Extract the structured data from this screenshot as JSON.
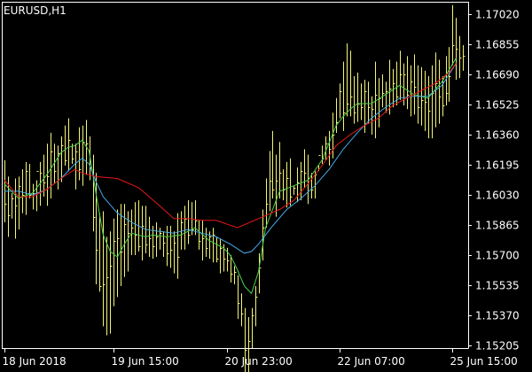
{
  "window": {
    "title": "EURUSD,H1"
  },
  "colors": {
    "background": "#000000",
    "axis": "#ffffff",
    "bars": "#f4f476",
    "ma_fast": "#4bd24b",
    "ma_medium": "#45a9e8",
    "ma_slow": "#e81818"
  },
  "chart_data": {
    "type": "line",
    "title": "EURUSD,H1",
    "symbol": "EURUSD",
    "timeframe": "H1",
    "xlabel": "",
    "ylabel": "",
    "grid": false,
    "legend": "none",
    "ylim": [
      1.1508,
      1.1711
    ],
    "y_ticks": [
      "1.17020",
      "1.16855",
      "1.16690",
      "1.16525",
      "1.16360",
      "1.16195",
      "1.16030",
      "1.15865",
      "1.15700",
      "1.15535",
      "1.15370",
      "1.15205"
    ],
    "x_ticks": [
      "18 Jun 2018",
      "19 Jun 15:00",
      "20 Jun 23:00",
      "22 Jun 07:00",
      "25 Jun 15:00"
    ],
    "x_tick_bar_index": [
      0,
      31,
      63,
      95,
      127
    ],
    "bars": {
      "style": "hlc",
      "high": [
        1.1622,
        1.1613,
        1.1604,
        1.1612,
        1.1613,
        1.1617,
        1.1621,
        1.162,
        1.1609,
        1.1611,
        1.1621,
        1.1625,
        1.1631,
        1.1637,
        1.1631,
        1.163,
        1.1635,
        1.1641,
        1.1645,
        1.1631,
        1.1631,
        1.164,
        1.1641,
        1.1644,
        1.1635,
        1.1625,
        1.1615,
        1.1593,
        1.1594,
        1.158,
        1.1583,
        1.159,
        1.1595,
        1.1598,
        1.1598,
        1.1594,
        1.1595,
        1.1599,
        1.16,
        1.1597,
        1.1597,
        1.1591,
        1.1586,
        1.1588,
        1.1585,
        1.1583,
        1.1586,
        1.1586,
        1.1583,
        1.1593,
        1.1594,
        1.1597,
        1.16,
        1.1599,
        1.16,
        1.1589,
        1.1589,
        1.1585,
        1.1583,
        1.1585,
        1.158,
        1.1579,
        1.1576,
        1.1574,
        1.157,
        1.1564,
        1.1559,
        1.1549,
        1.1541,
        1.1536,
        1.1541,
        1.1553,
        1.1571,
        1.1595,
        1.1612,
        1.1627,
        1.1638,
        1.1625,
        1.1632,
        1.1617,
        1.1621,
        1.1623,
        1.1608,
        1.1618,
        1.1621,
        1.1628,
        1.1625,
        1.1615,
        1.1616,
        1.1619,
        1.163,
        1.1635,
        1.1638,
        1.1648,
        1.1656,
        1.1664,
        1.1676,
        1.1686,
        1.1682,
        1.1668,
        1.167,
        1.1664,
        1.1666,
        1.1665,
        1.1657,
        1.1676,
        1.1667,
        1.1669,
        1.1665,
        1.1677,
        1.1672,
        1.1676,
        1.1682,
        1.1675,
        1.1679,
        1.1674,
        1.168,
        1.1674,
        1.1673,
        1.1671,
        1.1668,
        1.1674,
        1.1681,
        1.1677,
        1.1668,
        1.1679,
        1.1684,
        1.1707,
        1.17,
        1.169,
        1.1685
      ],
      "low": [
        1.1588,
        1.158,
        1.159,
        1.1579,
        1.1584,
        1.1593,
        1.1592,
        1.1601,
        1.1595,
        1.1594,
        1.1597,
        1.1602,
        1.1597,
        1.1601,
        1.1609,
        1.1606,
        1.161,
        1.1619,
        1.1616,
        1.162,
        1.1606,
        1.1611,
        1.1608,
        1.1614,
        1.1611,
        1.1583,
        1.1554,
        1.155,
        1.1531,
        1.1526,
        1.1527,
        1.1542,
        1.1547,
        1.1553,
        1.1558,
        1.1561,
        1.157,
        1.157,
        1.1572,
        1.1567,
        1.1571,
        1.1569,
        1.1568,
        1.1569,
        1.1573,
        1.1569,
        1.1564,
        1.1563,
        1.156,
        1.1557,
        1.1573,
        1.1573,
        1.1576,
        1.1581,
        1.1581,
        1.1573,
        1.1567,
        1.1569,
        1.1568,
        1.1566,
        1.1566,
        1.156,
        1.1561,
        1.1561,
        1.1555,
        1.1554,
        1.1535,
        1.1531,
        1.1502,
        1.1505,
        1.1519,
        1.1531,
        1.1549,
        1.1567,
        1.1585,
        1.1594,
        1.1601,
        1.1591,
        1.1601,
        1.16,
        1.1596,
        1.1597,
        1.1603,
        1.1599,
        1.16,
        1.1607,
        1.1598,
        1.1601,
        1.1601,
        1.1616,
        1.162,
        1.1622,
        1.1619,
        1.1623,
        1.1637,
        1.1645,
        1.1638,
        1.1646,
        1.1646,
        1.1642,
        1.1643,
        1.1644,
        1.1637,
        1.1642,
        1.1636,
        1.1634,
        1.164,
        1.1651,
        1.1648,
        1.1647,
        1.1651,
        1.1652,
        1.1655,
        1.1652,
        1.165,
        1.1646,
        1.1647,
        1.1642,
        1.1641,
        1.1638,
        1.1634,
        1.1634,
        1.164,
        1.1642,
        1.1646,
        1.1652,
        1.1654,
        1.1674,
        1.1666,
        1.1667,
        1.1671
      ],
      "close": [
        1.1598,
        1.1592,
        1.1601,
        1.1597,
        1.1608,
        1.1603,
        1.1616,
        1.1603,
        1.1604,
        1.1616,
        1.1615,
        1.161,
        1.1613,
        1.1627,
        1.1616,
        1.1626,
        1.163,
        1.1622,
        1.1633,
        1.1623,
        1.1627,
        1.1617,
        1.1632,
        1.1631,
        1.1618,
        1.1591,
        1.1573,
        1.1553,
        1.1554,
        1.1558,
        1.1564,
        1.1578,
        1.1579,
        1.1572,
        1.1587,
        1.1582,
        1.1585,
        1.1581,
        1.1575,
        1.1586,
        1.1576,
        1.1579,
        1.1575,
        1.158,
        1.1582,
        1.1577,
        1.1571,
        1.1573,
        1.1577,
        1.1569,
        1.1588,
        1.159,
        1.1581,
        1.1584,
        1.1589,
        1.1578,
        1.1579,
        1.1574,
        1.158,
        1.1581,
        1.1568,
        1.1574,
        1.1568,
        1.1567,
        1.156,
        1.1561,
        1.1544,
        1.1538,
        1.1518,
        1.1523,
        1.1537,
        1.1547,
        1.1563,
        1.1585,
        1.1598,
        1.1611,
        1.1606,
        1.1611,
        1.1615,
        1.1606,
        1.1612,
        1.1602,
        1.1607,
        1.161,
        1.1616,
        1.1615,
        1.1612,
        1.1606,
        1.1614,
        1.1625,
        1.1623,
        1.1631,
        1.1628,
        1.1636,
        1.1643,
        1.166,
        1.1648,
        1.1653,
        1.1657,
        1.1648,
        1.1653,
        1.1651,
        1.166,
        1.1651,
        1.165,
        1.1658,
        1.1656,
        1.1659,
        1.166,
        1.1661,
        1.1664,
        1.1657,
        1.1669,
        1.1669,
        1.1658,
        1.1665,
        1.1662,
        1.1651,
        1.1655,
        1.1654,
        1.1649,
        1.1659,
        1.1664,
        1.1657,
        1.1652,
        1.1659,
        1.1668,
        1.1685,
        1.1683,
        1.1678,
        1.1679
      ]
    },
    "series": [
      {
        "color": "#4bd24b",
        "x": [
          0,
          4,
          8,
          12,
          16,
          18,
          20,
          22,
          24,
          26,
          28,
          30,
          32,
          34,
          36,
          38,
          40,
          42,
          46,
          50,
          54,
          58,
          62,
          64,
          66,
          68,
          70,
          72,
          74,
          78,
          82,
          86,
          90,
          94,
          96,
          98,
          100,
          104,
          108,
          112,
          116,
          120,
          124,
          128
        ],
        "values": [
          1.1609,
          1.1601,
          1.1604,
          1.1614,
          1.1626,
          1.1629,
          1.163,
          1.1633,
          1.1627,
          1.1603,
          1.1581,
          1.1572,
          1.1569,
          1.1576,
          1.1582,
          1.1581,
          1.158,
          1.1581,
          1.158,
          1.1581,
          1.1585,
          1.1578,
          1.1574,
          1.157,
          1.1562,
          1.1553,
          1.1549,
          1.1561,
          1.1585,
          1.1605,
          1.1608,
          1.1611,
          1.1622,
          1.1641,
          1.1646,
          1.165,
          1.1653,
          1.1653,
          1.1658,
          1.1663,
          1.1658,
          1.1656,
          1.1665,
          1.1678
        ]
      },
      {
        "color": "#45a9e8",
        "x": [
          0,
          4,
          8,
          12,
          16,
          20,
          22,
          24,
          26,
          28,
          32,
          36,
          40,
          44,
          48,
          52,
          56,
          60,
          64,
          68,
          70,
          72,
          76,
          80,
          84,
          88,
          92,
          96,
          100,
          104,
          108,
          112,
          116,
          120,
          124,
          128
        ],
        "values": [
          1.1605,
          1.1605,
          1.1603,
          1.1606,
          1.1612,
          1.162,
          1.1623,
          1.162,
          1.161,
          1.1602,
          1.1593,
          1.1588,
          1.1584,
          1.1583,
          1.1582,
          1.1584,
          1.1582,
          1.158,
          1.1576,
          1.1571,
          1.1572,
          1.1576,
          1.1586,
          1.1595,
          1.1601,
          1.1608,
          1.1617,
          1.1628,
          1.1637,
          1.1645,
          1.1651,
          1.1656,
          1.1657,
          1.1657,
          1.1663,
          1.1675
        ]
      },
      {
        "color": "#e81818",
        "x": [
          0,
          4,
          8,
          12,
          16,
          20,
          22,
          26,
          32,
          38,
          44,
          48,
          52,
          56,
          60,
          66,
          72,
          78,
          82,
          86,
          90,
          94,
          98,
          102,
          106,
          110,
          114,
          118,
          122,
          126,
          128
        ],
        "values": [
          1.1611,
          1.1602,
          1.1602,
          1.1606,
          1.1612,
          1.1617,
          1.1615,
          1.1613,
          1.1612,
          1.1607,
          1.1597,
          1.159,
          1.159,
          1.1589,
          1.1589,
          1.1585,
          1.159,
          1.1595,
          1.16,
          1.1609,
          1.1619,
          1.163,
          1.1636,
          1.1641,
          1.1645,
          1.1652,
          1.1656,
          1.166,
          1.1664,
          1.167,
          1.1675
        ]
      }
    ]
  }
}
